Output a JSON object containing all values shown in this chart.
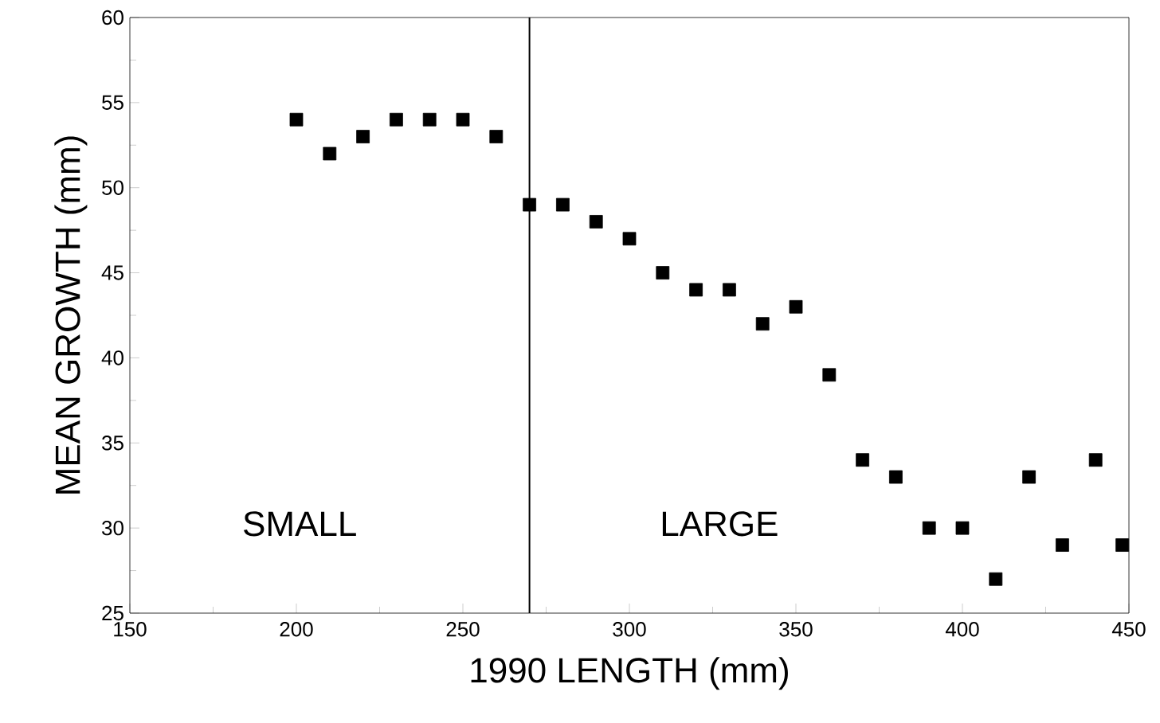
{
  "chart_data": {
    "type": "scatter",
    "xlabel": "1990 LENGTH (mm)",
    "ylabel": "MEAN GROWTH (mm)",
    "x": [
      200,
      210,
      220,
      230,
      240,
      250,
      260,
      270,
      280,
      290,
      300,
      310,
      320,
      330,
      340,
      350,
      360,
      370,
      380,
      390,
      400,
      410,
      420,
      430,
      440,
      448
    ],
    "values": [
      54,
      52,
      53,
      54,
      54,
      54,
      53,
      49,
      49,
      48,
      47,
      45,
      44,
      44,
      42,
      43,
      39,
      34,
      33,
      30,
      30,
      27,
      33,
      29,
      34,
      29
    ],
    "color": "#000000",
    "marker": "square",
    "xlim": [
      150,
      450
    ],
    "xticks": [
      150,
      200,
      250,
      300,
      350,
      400,
      450
    ],
    "ylim": [
      25,
      60
    ],
    "yticks": [
      25,
      30,
      35,
      40,
      45,
      50,
      55,
      60
    ],
    "ref_lines": [
      {
        "axis": "x",
        "value": 270,
        "color": "#000000"
      }
    ],
    "annotations": [
      "SMALL",
      "LARGE"
    ]
  }
}
